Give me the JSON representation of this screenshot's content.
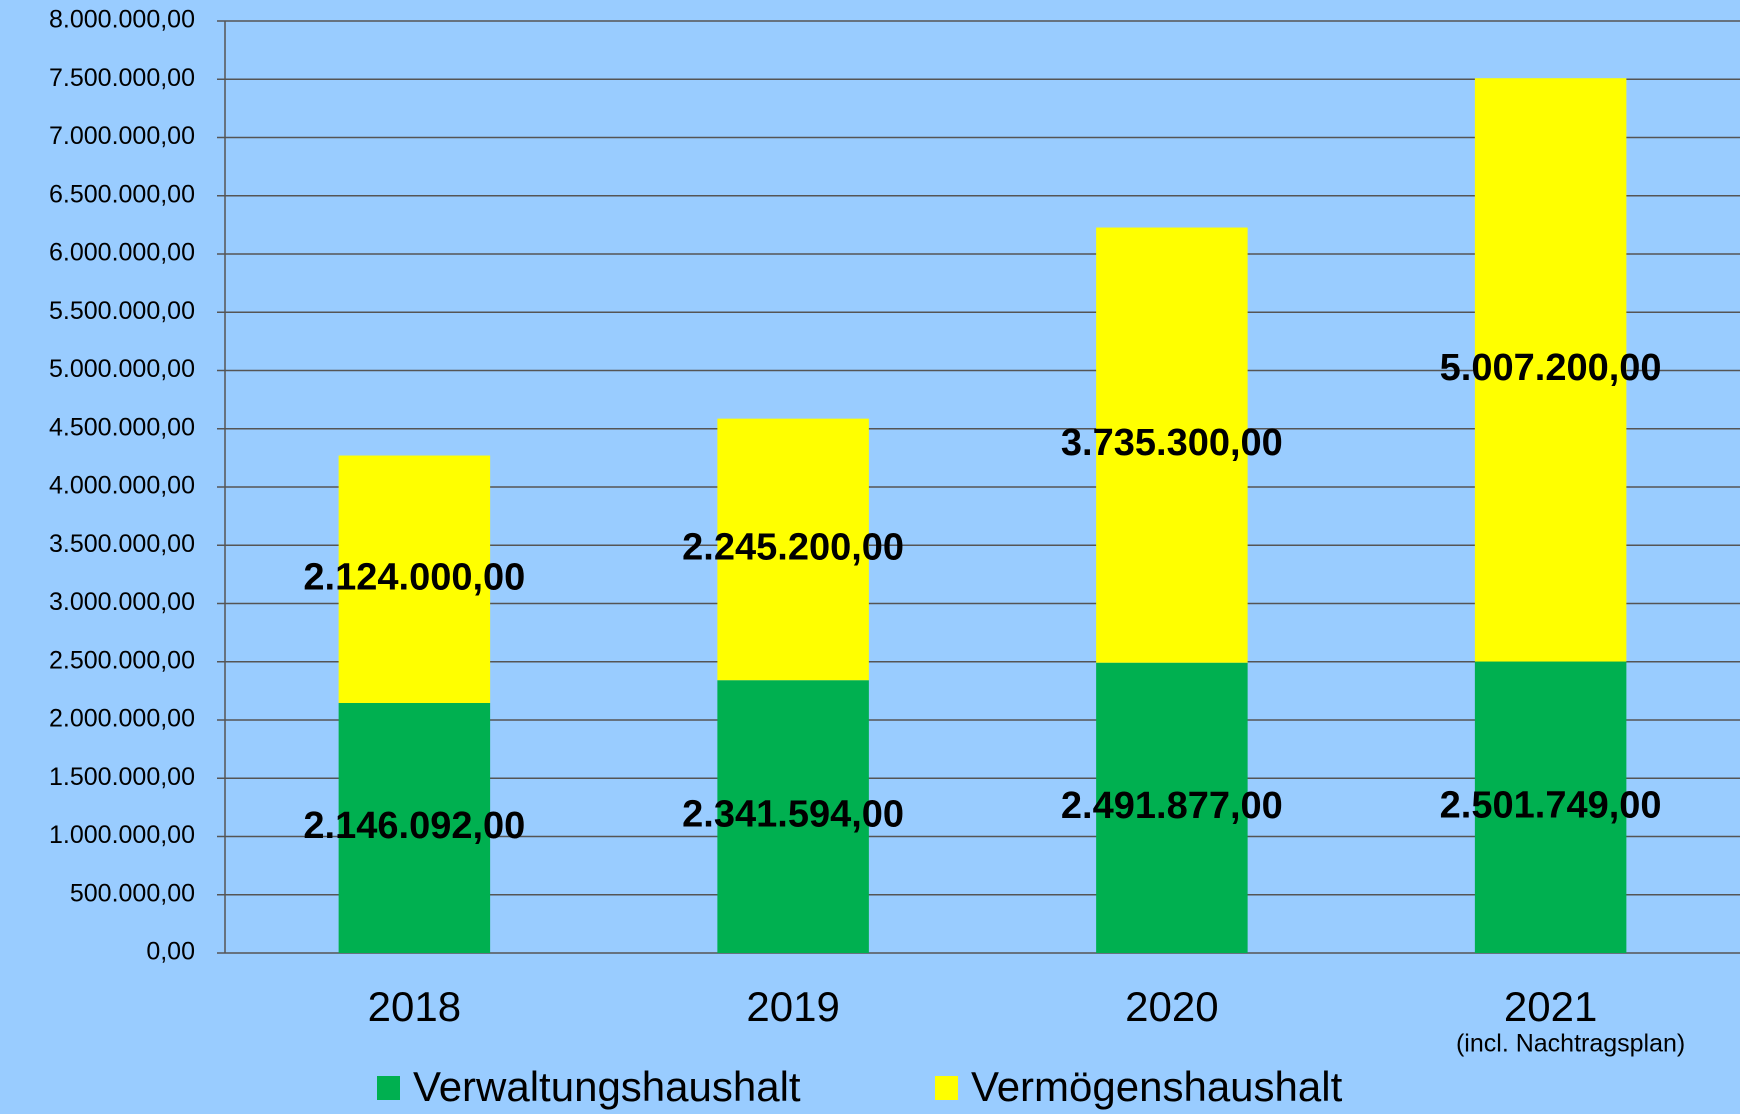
{
  "chart_data": {
    "type": "stacked_bar",
    "categories": [
      "2018",
      "2019",
      "2020",
      "2021"
    ],
    "annotations": [
      "(incl. Nachtragsplan)"
    ],
    "series": [
      {
        "name": "Verwaltungshaushalt",
        "color": "#00b050",
        "values": [
          2146092,
          2341594,
          2491877,
          2501749
        ],
        "value_labels": [
          "2.146.092,00",
          "2.341.594,00",
          "2.491.877,00",
          "2.501.749,00"
        ]
      },
      {
        "name": "Vermögenshaushalt",
        "color": "#ffff00",
        "values": [
          2124000,
          2245200,
          3735300,
          5007200
        ],
        "value_labels": [
          "2.124.000,00",
          "2.245.200,00",
          "3.735.300,00",
          "5.007.200,00"
        ]
      }
    ],
    "ylim": [
      0,
      8000000
    ],
    "yticks": [
      {
        "value": 0,
        "label": "0,00"
      },
      {
        "value": 500000,
        "label": "500.000,00"
      },
      {
        "value": 1000000,
        "label": "1.000.000,00"
      },
      {
        "value": 1500000,
        "label": "1.500.000,00"
      },
      {
        "value": 2000000,
        "label": "2.000.000,00"
      },
      {
        "value": 2500000,
        "label": "2.500.000,00"
      },
      {
        "value": 3000000,
        "label": "3.000.000,00"
      },
      {
        "value": 3500000,
        "label": "3.500.000,00"
      },
      {
        "value": 4000000,
        "label": "4.000.000,00"
      },
      {
        "value": 4500000,
        "label": "4.500.000,00"
      },
      {
        "value": 5000000,
        "label": "5.000.000,00"
      },
      {
        "value": 5500000,
        "label": "5.500.000,00"
      },
      {
        "value": 6000000,
        "label": "6.000.000,00"
      },
      {
        "value": 6500000,
        "label": "6.500.000,00"
      },
      {
        "value": 7000000,
        "label": "7.000.000,00"
      },
      {
        "value": 7500000,
        "label": "7.500.000,00"
      },
      {
        "value": 8000000,
        "label": "8.000.000,00"
      }
    ],
    "grid": true,
    "legend": "bottom",
    "background": "#99ccff"
  }
}
